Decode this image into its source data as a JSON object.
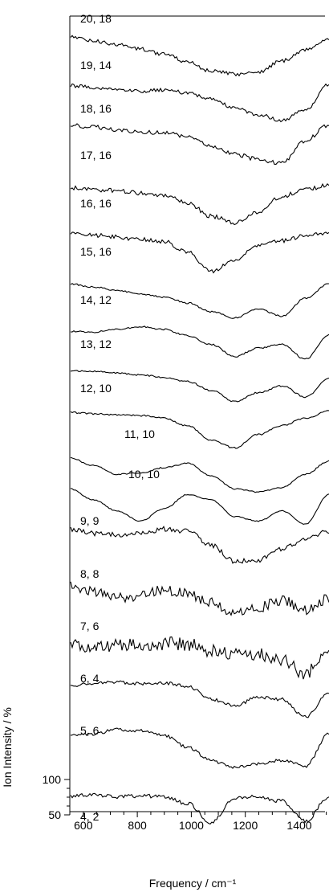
{
  "chart_data": {
    "type": "line",
    "title": "",
    "xlabel": "Frequency / cm⁻¹",
    "ylabel": "Ion Intensity / %",
    "xlim": [
      550,
      1500
    ],
    "xticks": [
      "600",
      "800",
      "1000",
      "1200",
      "1400"
    ],
    "yticks": [
      "100",
      "50"
    ],
    "y_scale_range": [
      50,
      100
    ],
    "grid": false,
    "legend": "none",
    "line_color": "#000000",
    "series": [
      {
        "name": "20, 18",
        "noise": 0.35,
        "values": [
          0.9,
          0.8,
          0.72,
          0.62,
          0.5,
          0.32,
          0.12,
          0.05,
          0.1,
          0.35,
          0.6,
          0.85
        ]
      },
      {
        "name": "19, 14",
        "noise": 0.35,
        "values": [
          0.88,
          0.84,
          0.8,
          0.76,
          0.78,
          0.72,
          0.58,
          0.38,
          0.22,
          0.1,
          0.32,
          0.92
        ]
      },
      {
        "name": "18, 16",
        "noise": 0.4,
        "values": [
          0.9,
          0.85,
          0.8,
          0.75,
          0.72,
          0.62,
          0.42,
          0.24,
          0.12,
          0.04,
          0.55,
          0.9
        ]
      },
      {
        "name": "17, 16",
        "noise": 0.4,
        "values": [
          0.85,
          0.8,
          0.78,
          0.72,
          0.68,
          0.5,
          0.2,
          0.05,
          0.3,
          0.65,
          0.8,
          0.9
        ]
      },
      {
        "name": "16, 16",
        "noise": 0.4,
        "values": [
          0.92,
          0.86,
          0.82,
          0.76,
          0.72,
          0.48,
          0.05,
          0.3,
          0.62,
          0.74,
          0.85,
          0.92
        ]
      },
      {
        "name": "15, 16",
        "noise": 0.15,
        "values": [
          0.85,
          0.78,
          0.7,
          0.62,
          0.55,
          0.42,
          0.22,
          0.08,
          0.28,
          0.12,
          0.52,
          0.85
        ]
      },
      {
        "name": "14, 12",
        "noise": 0.15,
        "values": [
          0.78,
          0.76,
          0.82,
          0.88,
          0.82,
          0.68,
          0.48,
          0.2,
          0.4,
          0.48,
          0.15,
          0.7
        ]
      },
      {
        "name": "13, 12",
        "noise": 0.15,
        "values": [
          0.8,
          0.78,
          0.74,
          0.7,
          0.64,
          0.55,
          0.35,
          0.1,
          0.3,
          0.45,
          0.2,
          0.62
        ]
      },
      {
        "name": "12, 10",
        "noise": 0.15,
        "values": [
          0.85,
          0.82,
          0.8,
          0.78,
          0.72,
          0.55,
          0.22,
          0.05,
          0.35,
          0.55,
          0.72,
          0.88
        ]
      },
      {
        "name": "11, 10",
        "noise": 0.12,
        "values": [
          0.82,
          0.65,
          0.45,
          0.48,
          0.6,
          0.7,
          0.42,
          0.12,
          0.05,
          0.15,
          0.45,
          0.75
        ]
      },
      {
        "name": "10, 10",
        "noise": 0.1,
        "values": [
          0.85,
          0.6,
          0.35,
          0.12,
          0.4,
          0.72,
          0.6,
          0.22,
          0.12,
          0.35,
          0.05,
          0.72
        ]
      },
      {
        "name": "9, 9",
        "noise": 0.45,
        "values": [
          0.85,
          0.75,
          0.72,
          0.75,
          0.85,
          0.8,
          0.48,
          0.12,
          0.15,
          0.4,
          0.62,
          0.8
        ]
      },
      {
        "name": "8, 8",
        "noise": 1.0,
        "values": [
          0.85,
          0.72,
          0.55,
          0.6,
          0.75,
          0.65,
          0.45,
          0.2,
          0.35,
          0.5,
          0.3,
          0.55
        ]
      },
      {
        "name": "7, 6",
        "noise": 1.3,
        "values": [
          0.65,
          0.65,
          0.66,
          0.7,
          0.72,
          0.7,
          0.55,
          0.45,
          0.48,
          0.35,
          0.05,
          0.65
        ]
      },
      {
        "name": "6, 4",
        "noise": 0.3,
        "values": [
          0.75,
          0.82,
          0.84,
          0.8,
          0.82,
          0.75,
          0.45,
          0.3,
          0.5,
          0.45,
          0.05,
          0.6
        ]
      },
      {
        "name": "5, 6",
        "noise": 0.3,
        "values": [
          0.8,
          0.85,
          0.95,
          0.92,
          0.82,
          0.55,
          0.25,
          0.08,
          0.18,
          0.25,
          0.12,
          0.85
        ]
      },
      {
        "name": "4, 2",
        "noise": 0.35,
        "values": [
          0.72,
          0.74,
          0.7,
          0.72,
          0.7,
          0.55,
          0.12,
          0.68,
          0.7,
          0.6,
          0.15,
          0.7
        ]
      }
    ]
  }
}
